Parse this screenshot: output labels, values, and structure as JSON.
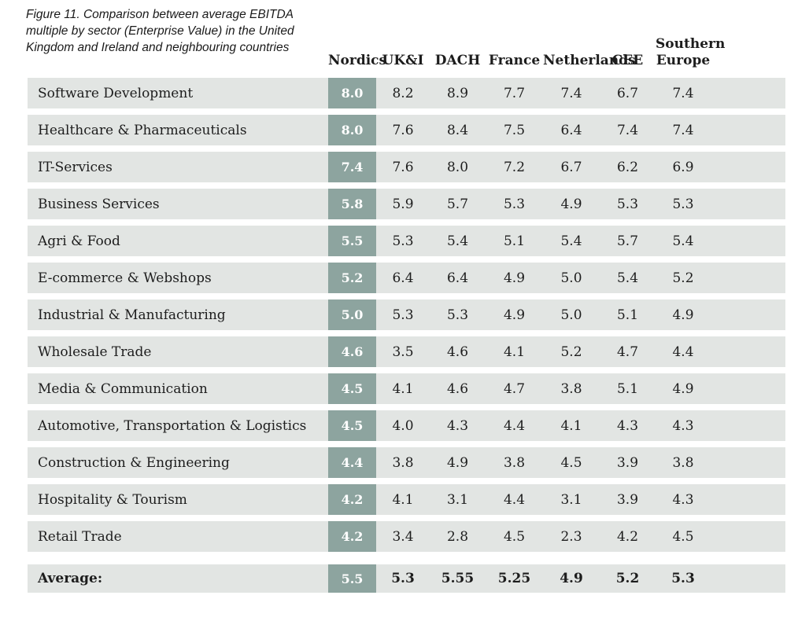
{
  "caption": {
    "lines": [
      "Figure 11. Comparison between average EBITDA",
      "multiple by sector (Enterprise Value) in the United",
      "Kingdom and Ireland and neighbouring countries"
    ]
  },
  "chart_data": {
    "type": "table",
    "title": "Figure 11. Comparison between average EBITDA multiple by sector (Enterprise Value) in the United Kingdom and Ireland and neighbouring countries",
    "columns": [
      "Nordics",
      "UK&I",
      "DACH",
      "France",
      "Netherlands",
      "CEE",
      "Southern Europe"
    ],
    "highlight_column": "Nordics",
    "rows": [
      {
        "sector": "Software Development",
        "values": [
          "8.0",
          "8.2",
          "8.9",
          "7.7",
          "7.4",
          "6.7",
          "7.4"
        ]
      },
      {
        "sector": "Healthcare & Pharmaceuticals",
        "values": [
          "8.0",
          "7.6",
          "8.4",
          "7.5",
          "6.4",
          "7.4",
          "7.4"
        ]
      },
      {
        "sector": "IT-Services",
        "values": [
          "7.4",
          "7.6",
          "8.0",
          "7.2",
          "6.7",
          "6.2",
          "6.9"
        ]
      },
      {
        "sector": "Business Services",
        "values": [
          "5.8",
          "5.9",
          "5.7",
          "5.3",
          "4.9",
          "5.3",
          "5.3"
        ]
      },
      {
        "sector": "Agri & Food",
        "values": [
          "5.5",
          "5.3",
          "5.4",
          "5.1",
          "5.4",
          "5.7",
          "5.4"
        ]
      },
      {
        "sector": "E-commerce & Webshops",
        "values": [
          "5.2",
          "6.4",
          "6.4",
          "4.9",
          "5.0",
          "5.4",
          "5.2"
        ]
      },
      {
        "sector": "Industrial & Manufacturing",
        "values": [
          "5.0",
          "5.3",
          "5.3",
          "4.9",
          "5.0",
          "5.1",
          "4.9"
        ]
      },
      {
        "sector": "Wholesale Trade",
        "values": [
          "4.6",
          "3.5",
          "4.6",
          "4.1",
          "5.2",
          "4.7",
          "4.4"
        ]
      },
      {
        "sector": "Media & Communication",
        "values": [
          "4.5",
          "4.1",
          "4.6",
          "4.7",
          "3.8",
          "5.1",
          "4.9"
        ]
      },
      {
        "sector": "Automotive, Transportation & Logistics",
        "values": [
          "4.5",
          "4.0",
          "4.3",
          "4.4",
          "4.1",
          "4.3",
          "4.3"
        ]
      },
      {
        "sector": "Construction & Engineering",
        "values": [
          "4.4",
          "3.8",
          "4.9",
          "3.8",
          "4.5",
          "3.9",
          "3.8"
        ]
      },
      {
        "sector": "Hospitality & Tourism",
        "values": [
          "4.2",
          "4.1",
          "3.1",
          "4.4",
          "3.1",
          "3.9",
          "4.3"
        ]
      },
      {
        "sector": "Retail Trade",
        "values": [
          "4.2",
          "3.4",
          "2.8",
          "4.5",
          "2.3",
          "4.2",
          "4.5"
        ]
      }
    ],
    "average": {
      "label": "Average:",
      "values": [
        "5.5",
        "5.3",
        "5.55",
        "5.25",
        "4.9",
        "5.2",
        "5.3"
      ]
    }
  },
  "colors": {
    "row_background": "#e2e5e3",
    "highlight_badge": "#8da49f",
    "badge_text": "#ffffff",
    "text": "#1d1d1d",
    "page_background": "#ffffff"
  }
}
